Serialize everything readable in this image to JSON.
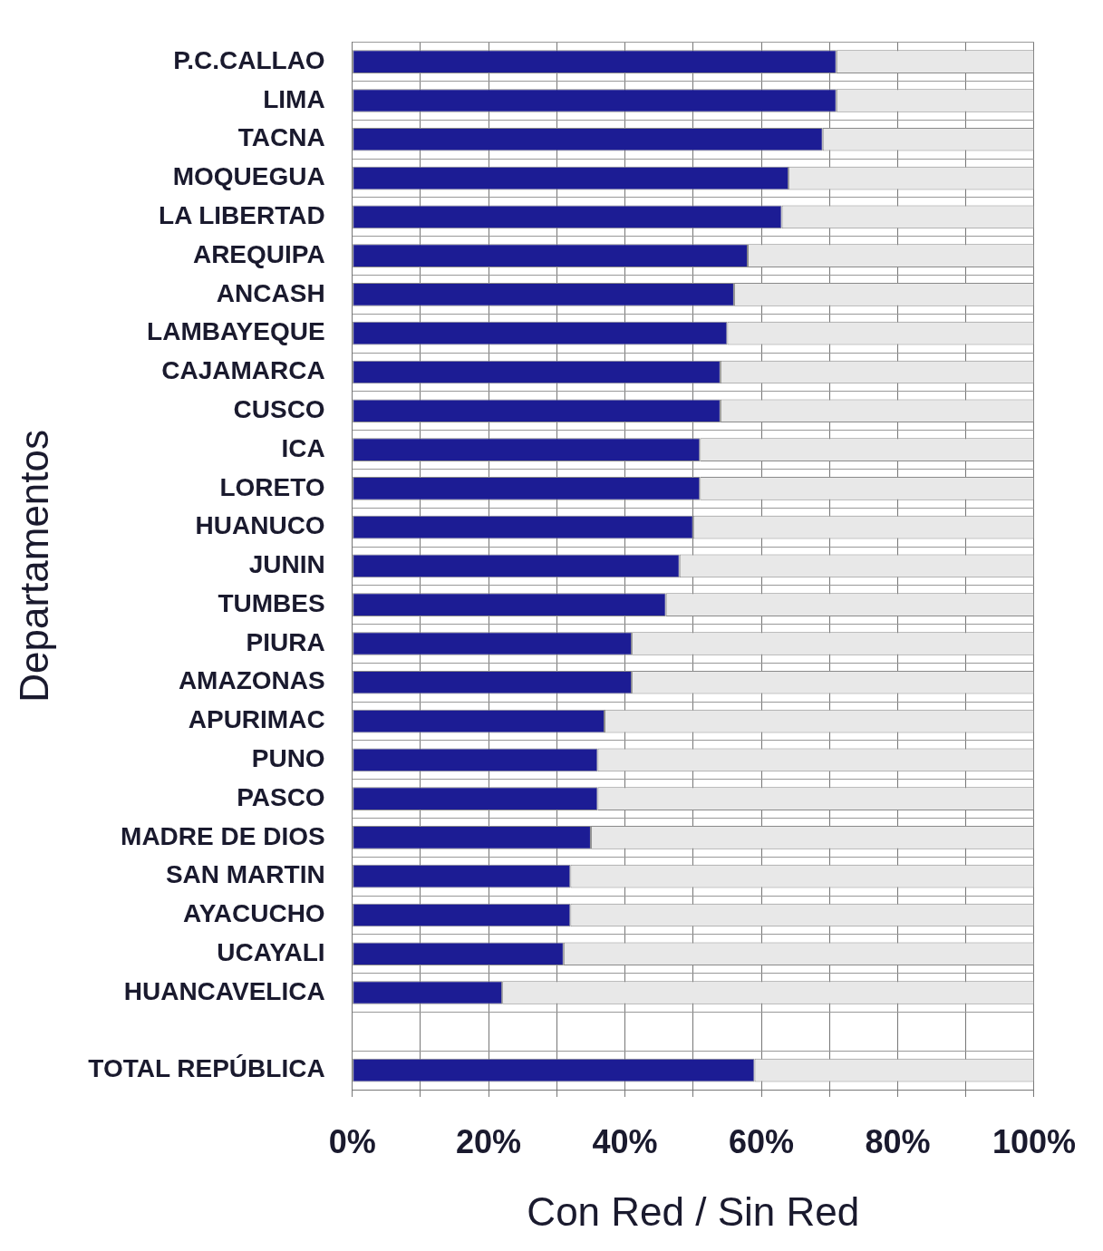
{
  "chart_data": {
    "type": "bar",
    "orientation": "horizontal",
    "stacked": true,
    "xlabel": "Con Red / Sin Red",
    "ylabel": "Departamentos",
    "categories": [
      "P.C.CALLAO",
      "LIMA",
      "TACNA",
      "MOQUEGUA",
      "LA LIBERTAD",
      "AREQUIPA",
      "ANCASH",
      "LAMBAYEQUE",
      "CAJAMARCA",
      "CUSCO",
      "ICA",
      "LORETO",
      "HUANUCO",
      "JUNIN",
      "TUMBES",
      "PIURA",
      "AMAZONAS",
      "APURIMAC",
      "PUNO",
      "PASCO",
      "MADRE DE DIOS",
      "SAN MARTIN",
      "AYACUCHO",
      "UCAYALI",
      "HUANCAVELICA",
      null,
      "TOTAL REPÚBLICA"
    ],
    "series": [
      {
        "color": "#1c1c94",
        "values": [
          71,
          71,
          69,
          64,
          63,
          58,
          56,
          55,
          54,
          54,
          51,
          51,
          50,
          48,
          46,
          41,
          41,
          37,
          36,
          36,
          35,
          32,
          32,
          31,
          22,
          null,
          59
        ]
      },
      {
        "color": "#e8e8e8",
        "values": [
          29,
          29,
          31,
          36,
          37,
          42,
          44,
          45,
          46,
          46,
          49,
          49,
          50,
          52,
          54,
          59,
          59,
          63,
          64,
          64,
          65,
          68,
          68,
          69,
          78,
          null,
          41
        ]
      }
    ],
    "xlim": [
      0,
      100
    ],
    "xticks": [
      {
        "value": 0,
        "label": "0%"
      },
      {
        "value": 10,
        "label": null
      },
      {
        "value": 20,
        "label": "20%"
      },
      {
        "value": 30,
        "label": null
      },
      {
        "value": 40,
        "label": "40%"
      },
      {
        "value": 50,
        "label": null
      },
      {
        "value": 60,
        "label": "60%"
      },
      {
        "value": 70,
        "label": null
      },
      {
        "value": 80,
        "label": "80%"
      },
      {
        "value": 90,
        "label": null
      },
      {
        "value": 100,
        "label": "100%"
      }
    ],
    "grid": true,
    "legend": false
  }
}
